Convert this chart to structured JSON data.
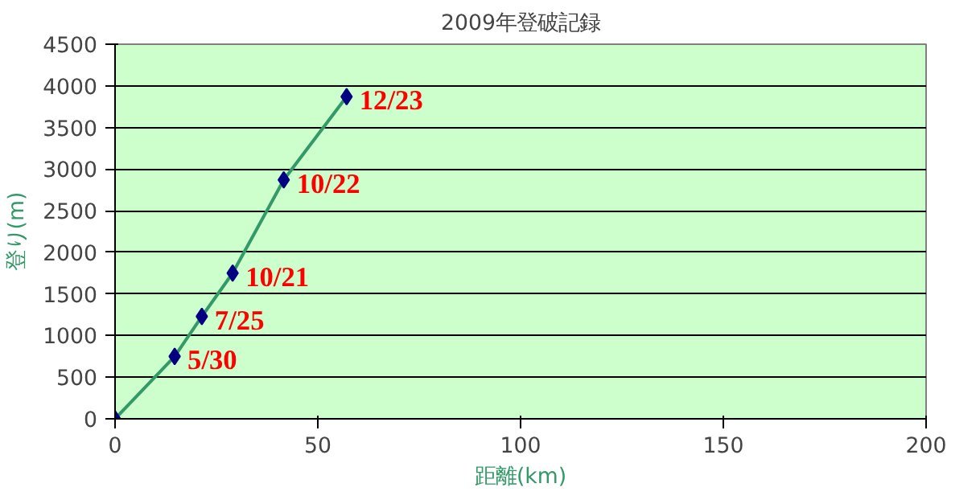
{
  "chart_data": {
    "type": "line",
    "title": "2009年登破記録",
    "xlabel": "距離(km)",
    "ylabel": "登り(m)",
    "x": [
      0,
      14.7,
      21.4,
      29,
      41.6,
      57.1
    ],
    "series": [
      {
        "color": "#339966",
        "values": [
          0,
          750,
          1230,
          1750,
          2870,
          3870
        ]
      },
      {
        "type": "scatter",
        "marker": "diamond",
        "color": "#000080",
        "values": [
          0,
          750,
          1230,
          1750,
          2870,
          3870
        ]
      }
    ],
    "xlim": [
      0,
      200
    ],
    "xticks": [
      0,
      50,
      100,
      150,
      200
    ],
    "ylim": [
      0,
      4500
    ],
    "yticks": [
      0,
      500,
      1000,
      1500,
      2000,
      2500,
      3000,
      3500,
      4000,
      4500
    ],
    "grid": "y",
    "annotations": [
      {
        "text": "5/30",
        "x": 14.7,
        "y": 750
      },
      {
        "text": "7/25",
        "x": 21.4,
        "y": 1230
      },
      {
        "text": "10/21",
        "x": 29,
        "y": 1750
      },
      {
        "text": "10/22",
        "x": 41.6,
        "y": 2870
      },
      {
        "text": "12/23",
        "x": 57.1,
        "y": 3870
      }
    ]
  }
}
